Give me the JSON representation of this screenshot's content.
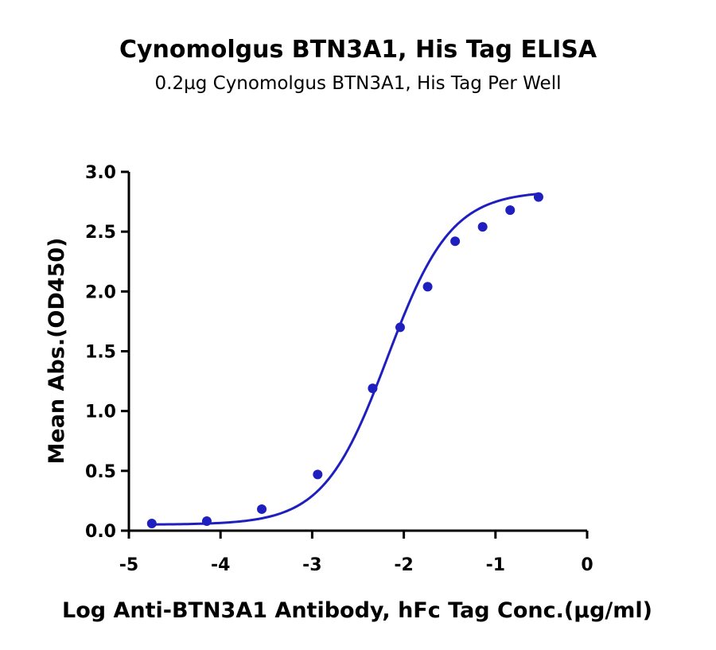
{
  "chart_data": {
    "type": "scatter",
    "title": "Cynomolgus BTN3A1, His Tag ELISA",
    "subtitle": "0.2µg Cynomolgus BTN3A1, His Tag Per Well",
    "xlabel": "Log Anti-BTN3A1 Antibody, hFc Tag Conc.(µg/ml)",
    "ylabel": "Mean Abs.(OD450)",
    "xlim": [
      -5,
      0
    ],
    "ylim": [
      0,
      3.0
    ],
    "x_ticks": [
      -5,
      -4,
      -3,
      -2,
      -1,
      0
    ],
    "x_tick_labels": [
      "-5",
      "-4",
      "-3",
      "-2",
      "-1",
      "0"
    ],
    "y_ticks": [
      0,
      0.5,
      1.0,
      1.5,
      2.0,
      2.5,
      3.0
    ],
    "y_tick_labels": [
      "0.0",
      "0.5",
      "1.0",
      "1.5",
      "2.0",
      "2.5",
      "3.0"
    ],
    "grid": false,
    "color": "#1f1fbf",
    "series": [
      {
        "x": [
          -4.75,
          -4.15,
          -3.55,
          -2.94,
          -2.34,
          -2.04,
          -1.74,
          -1.44,
          -1.14,
          -0.84,
          -0.53
        ],
        "y": [
          0.06,
          0.08,
          0.18,
          0.47,
          1.19,
          1.7,
          2.04,
          2.42,
          2.54,
          2.68,
          2.79
        ]
      }
    ],
    "fit": {
      "type": "4PL",
      "bottom": 0.05,
      "top": 2.84,
      "logEC50": -2.18,
      "hill": 1.25
    }
  }
}
